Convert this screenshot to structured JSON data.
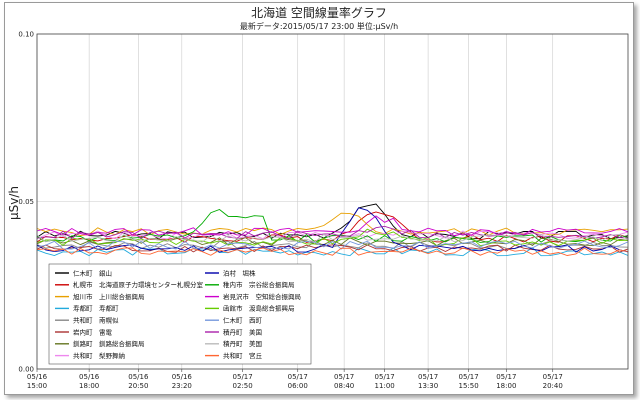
{
  "chart_data": {
    "type": "line",
    "title": "北海道 空間線量率グラフ",
    "subtitle": "最新データ:2015/05/17 23:00   単位:μSv/h",
    "ylabel": "μSv/h",
    "xlabel": "",
    "ylim": [
      0,
      0.1
    ],
    "yticks": [
      "0.00",
      "0.05",
      "0.10"
    ],
    "grid": true,
    "legend_position": "bottom-left",
    "x_start_hours": 0,
    "x_end_hours": 34,
    "x_ticks": [
      {
        "date": "05/16",
        "time": "15:00",
        "h": 0
      },
      {
        "date": "05/16",
        "time": "18:00",
        "h": 3
      },
      {
        "date": "05/16",
        "time": "20:50",
        "h": 5.83
      },
      {
        "date": "05/16",
        "time": "23:20",
        "h": 8.33
      },
      {
        "date": "05/17",
        "time": "02:50",
        "h": 11.83
      },
      {
        "date": "05/17",
        "time": "06:00",
        "h": 15
      },
      {
        "date": "05/17",
        "time": "08:40",
        "h": 17.67
      },
      {
        "date": "05/17",
        "time": "11:00",
        "h": 20
      },
      {
        "date": "05/17",
        "time": "13:30",
        "h": 22.5
      },
      {
        "date": "05/17",
        "time": "15:50",
        "h": 24.83
      },
      {
        "date": "05/17",
        "time": "18:00",
        "h": 27
      },
      {
        "date": "05/17",
        "time": "20:40",
        "h": 29.67
      }
    ],
    "series": [
      {
        "name": "仁木町　銀山",
        "color": "#000000",
        "base": 0.04
      },
      {
        "name": "札幌市　北海道原子力環境センター札幌分室",
        "color": "#cc0000",
        "base": 0.039
      },
      {
        "name": "旭川市　上川総合振興局",
        "color": "#e8a000",
        "base": 0.041
      },
      {
        "name": "寿都町　寿都町",
        "color": "#22aadd",
        "base": 0.035
      },
      {
        "name": "共和町　南幌似",
        "color": "#888888",
        "base": 0.037
      },
      {
        "name": "岩内町　雷電",
        "color": "#aa3333",
        "base": 0.036
      },
      {
        "name": "釧路町　釧路総合振興局",
        "color": "#667722",
        "base": 0.038
      },
      {
        "name": "共和町　梨野舞納",
        "color": "#ee88ee",
        "base": 0.04
      },
      {
        "name": "泊村　堀株",
        "color": "#0000aa",
        "base": 0.036
      },
      {
        "name": "稚内市　宗谷総合振興局",
        "color": "#00aa00",
        "base": 0.039
      },
      {
        "name": "岩見沢市　空知総合振興局",
        "color": "#cc00cc",
        "base": 0.041
      },
      {
        "name": "函館市　渡島総合振興局",
        "color": "#66cc00",
        "base": 0.038
      },
      {
        "name": "仁木町　西町",
        "color": "#7799dd",
        "base": 0.037
      },
      {
        "name": "積丹町　美国",
        "color": "#aa22aa",
        "base": 0.04
      },
      {
        "name": "積丹町　美国",
        "color": "#bbbbbb",
        "base": 0.039
      },
      {
        "name": "共和町　宮丘",
        "color": "#ff6633",
        "base": 0.035
      }
    ]
  }
}
